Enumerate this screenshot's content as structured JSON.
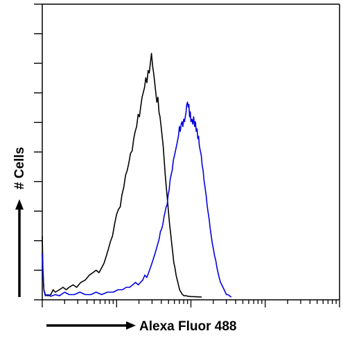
{
  "chart_data": {
    "type": "line",
    "title": "",
    "xlabel": "Alexa Fluor 488",
    "ylabel": "# Cells",
    "xscale": "log",
    "xlim": [
      1,
      10000
    ],
    "ylim": [
      0,
      100
    ],
    "grid": false,
    "legend": "none",
    "series": [
      {
        "color": "#000000",
        "points": [
          [
            1.0,
            25
          ],
          [
            1.02,
            12
          ],
          [
            1.05,
            3
          ],
          [
            1.1,
            1
          ],
          [
            1.2,
            0.5
          ],
          [
            1.3,
            1
          ],
          [
            1.4,
            3
          ],
          [
            1.5,
            2
          ],
          [
            1.7,
            3
          ],
          [
            1.9,
            4
          ],
          [
            2.1,
            3
          ],
          [
            2.3,
            4
          ],
          [
            2.6,
            5
          ],
          [
            2.9,
            4
          ],
          [
            3.3,
            6
          ],
          [
            3.8,
            7
          ],
          [
            4.3,
            9
          ],
          [
            4.8,
            10
          ],
          [
            5.3,
            11
          ],
          [
            5.8,
            10
          ],
          [
            6.3,
            12
          ],
          [
            6.8,
            14
          ],
          [
            7.3,
            17
          ],
          [
            7.8,
            20
          ],
          [
            8.3,
            23
          ],
          [
            8.8,
            25
          ],
          [
            9.4,
            30
          ],
          [
            10.0,
            34
          ],
          [
            10.6,
            36
          ],
          [
            11.2,
            37
          ],
          [
            11.8,
            42
          ],
          [
            12.5,
            45
          ],
          [
            13.2,
            50
          ],
          [
            13.9,
            52
          ],
          [
            14.6,
            55
          ],
          [
            15.4,
            59
          ],
          [
            16.2,
            60
          ],
          [
            17.0,
            65
          ],
          [
            17.8,
            68
          ],
          [
            18.6,
            70
          ],
          [
            19.5,
            75
          ],
          [
            20.3,
            74
          ],
          [
            21.1,
            78
          ],
          [
            22.0,
            82
          ],
          [
            22.9,
            84
          ],
          [
            23.8,
            86
          ],
          [
            24.7,
            90
          ],
          [
            25.6,
            88
          ],
          [
            26.6,
            93
          ],
          [
            27.5,
            92
          ],
          [
            28.5,
            96
          ],
          [
            29.5,
            100
          ],
          [
            30.5,
            95
          ],
          [
            31.5,
            92
          ],
          [
            32.6,
            88
          ],
          [
            33.7,
            84
          ],
          [
            34.8,
            80
          ],
          [
            36.0,
            82
          ],
          [
            37.2,
            76
          ],
          [
            38.4,
            74
          ],
          [
            39.7,
            70
          ],
          [
            41.0,
            66
          ],
          [
            42.4,
            62
          ],
          [
            43.8,
            56
          ],
          [
            45.2,
            50
          ],
          [
            46.7,
            45
          ],
          [
            48.3,
            40
          ],
          [
            49.9,
            35
          ],
          [
            51.6,
            30
          ],
          [
            53.4,
            26
          ],
          [
            55.2,
            22
          ],
          [
            57.1,
            18
          ],
          [
            59.0,
            14
          ],
          [
            61.0,
            12
          ],
          [
            63.2,
            9
          ],
          [
            65.5,
            7
          ],
          [
            68.0,
            5
          ],
          [
            70.5,
            3
          ],
          [
            73.5,
            2
          ],
          [
            77,
            1
          ],
          [
            81,
            0.5
          ],
          [
            86,
            0.5
          ],
          [
            92,
            0.3
          ],
          [
            100,
            0.2
          ],
          [
            115,
            0.1
          ],
          [
            140,
            0
          ]
        ]
      },
      {
        "color": "#0000dd",
        "points": [
          [
            1.0,
            18
          ],
          [
            1.02,
            10
          ],
          [
            1.05,
            3
          ],
          [
            1.1,
            0.5
          ],
          [
            1.2,
            1
          ],
          [
            1.3,
            0.3
          ],
          [
            1.5,
            1
          ],
          [
            1.7,
            0.5
          ],
          [
            2.0,
            2
          ],
          [
            2.3,
            1
          ],
          [
            2.7,
            1
          ],
          [
            3.2,
            2
          ],
          [
            3.8,
            1
          ],
          [
            4.5,
            1
          ],
          [
            5.3,
            2
          ],
          [
            6.3,
            1
          ],
          [
            7.5,
            2
          ],
          [
            9.0,
            2
          ],
          [
            10.5,
            3
          ],
          [
            12.0,
            3
          ],
          [
            13.5,
            4
          ],
          [
            15.0,
            4
          ],
          [
            16.5,
            5
          ],
          [
            18.0,
            6
          ],
          [
            19.5,
            5
          ],
          [
            21.0,
            6
          ],
          [
            22.5,
            7
          ],
          [
            24.0,
            9
          ],
          [
            25.5,
            8
          ],
          [
            27.0,
            10
          ],
          [
            28.5,
            12
          ],
          [
            30.0,
            14
          ],
          [
            31.5,
            16
          ],
          [
            33.0,
            18
          ],
          [
            34.5,
            20
          ],
          [
            36.0,
            22
          ],
          [
            37.5,
            24
          ],
          [
            39.0,
            27
          ],
          [
            40.5,
            28
          ],
          [
            42.0,
            30
          ],
          [
            43.5,
            33
          ],
          [
            45.0,
            35
          ],
          [
            46.5,
            37
          ],
          [
            48.0,
            38
          ],
          [
            49.5,
            42
          ],
          [
            51.0,
            44
          ],
          [
            52.5,
            48
          ],
          [
            54.0,
            50
          ],
          [
            56.0,
            52
          ],
          [
            58.0,
            56
          ],
          [
            60.0,
            58
          ],
          [
            62.0,
            60
          ],
          [
            64.0,
            62
          ],
          [
            66.0,
            64
          ],
          [
            68.0,
            66
          ],
          [
            70.0,
            70
          ],
          [
            72.0,
            68
          ],
          [
            74.0,
            71
          ],
          [
            76.0,
            72
          ],
          [
            78.0,
            70
          ],
          [
            80.0,
            73
          ],
          [
            82.0,
            72
          ],
          [
            84.0,
            74
          ],
          [
            86.0,
            76
          ],
          [
            88.0,
            79
          ],
          [
            90.0,
            80
          ],
          [
            92.0,
            78
          ],
          [
            94.0,
            79
          ],
          [
            96.0,
            74
          ],
          [
            98.0,
            76
          ],
          [
            100.0,
            72
          ],
          [
            103.0,
            73
          ],
          [
            106.0,
            71
          ],
          [
            109.0,
            74
          ],
          [
            112.0,
            70
          ],
          [
            115.0,
            72
          ],
          [
            118.0,
            68
          ],
          [
            121.0,
            69
          ],
          [
            124.0,
            65
          ],
          [
            127.0,
            66
          ],
          [
            130.0,
            62
          ],
          [
            134.0,
            60
          ],
          [
            138.0,
            58
          ],
          [
            142.0,
            54
          ],
          [
            146.0,
            52
          ],
          [
            150.0,
            48
          ],
          [
            155.0,
            45
          ],
          [
            160.0,
            42
          ],
          [
            165.0,
            38
          ],
          [
            170.0,
            35
          ],
          [
            176.0,
            32
          ],
          [
            182.0,
            28
          ],
          [
            188.0,
            25
          ],
          [
            194.0,
            22
          ],
          [
            200.0,
            20
          ],
          [
            208.0,
            17
          ],
          [
            216.0,
            15
          ],
          [
            224.0,
            12
          ],
          [
            232.0,
            10
          ],
          [
            240.0,
            8
          ],
          [
            250.0,
            6
          ],
          [
            260.0,
            5
          ],
          [
            270.0,
            4
          ],
          [
            280.0,
            3
          ],
          [
            290.0,
            2
          ],
          [
            300.0,
            1
          ],
          [
            315.0,
            1
          ],
          [
            330.0,
            0.5
          ],
          [
            350.0,
            0
          ]
        ]
      }
    ]
  }
}
